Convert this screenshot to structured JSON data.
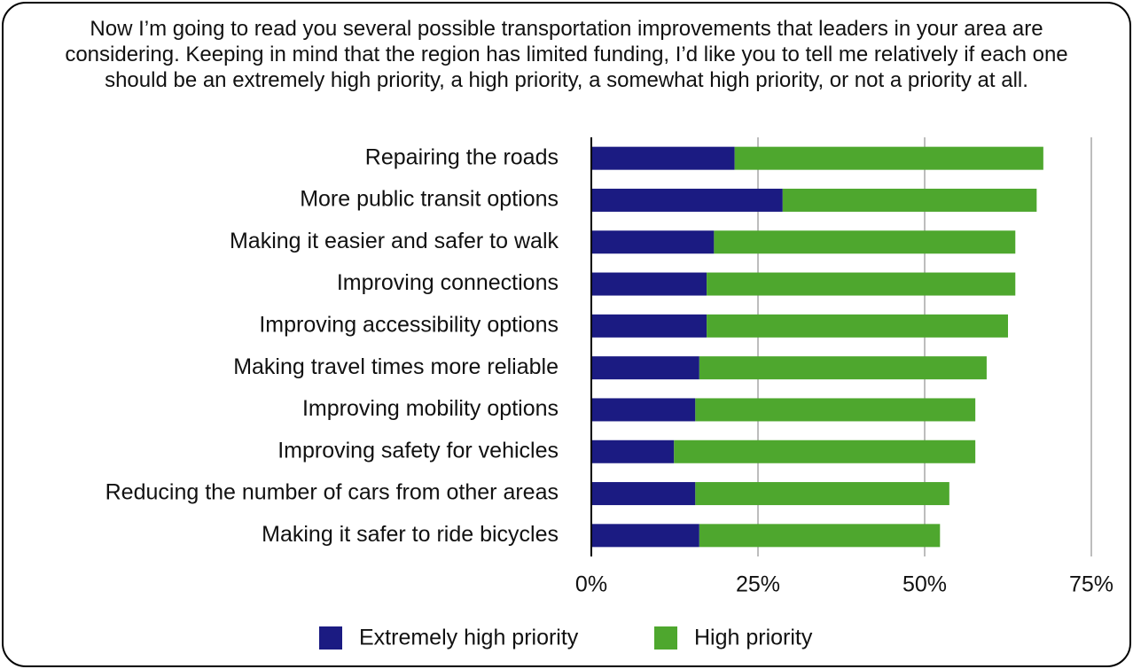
{
  "chart_data": {
    "type": "stacked-bar-horizontal",
    "title": "Now I’m going to read you several possible transportation improvements that leaders in your area are considering.  Keeping in mind that the region has limited funding, I’d like you to tell me relatively if each one should be an extremely high priority, a high priority, a somewhat high priority, or not a priority at all.",
    "categories": [
      "Repairing the roads",
      "More public transit options",
      "Making it easier and safer to walk",
      "Improving connections",
      "Improving accessibility options",
      "Making travel times more reliable",
      "Improving mobility options",
      "Improving safety for vehicles",
      "Reducing the number of cars from other areas",
      "Making it safer to ride bicycles"
    ],
    "series": [
      {
        "name": "Extremely high priority",
        "color": "#1b1b82",
        "values": [
          21.5,
          28.7,
          18.4,
          17.3,
          17.3,
          16.2,
          15.6,
          12.4,
          15.6,
          16.2
        ]
      },
      {
        "name": "High priority",
        "color": "#4ea72e",
        "values": [
          46.3,
          38.1,
          45.2,
          46.3,
          45.2,
          43.1,
          42,
          45.2,
          38.1,
          36.1
        ]
      }
    ],
    "xlim": [
      0,
      75
    ],
    "xticks": [
      {
        "value": 0,
        "label": "0%"
      },
      {
        "value": 25,
        "label": "25%"
      },
      {
        "value": 50,
        "label": "50%"
      },
      {
        "value": 75,
        "label": "75%"
      }
    ],
    "grid": true,
    "legend": "bottom"
  }
}
